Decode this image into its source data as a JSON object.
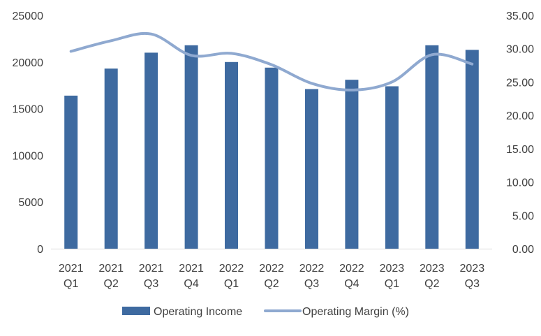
{
  "chart_data": {
    "type": "bar",
    "categories": [
      [
        "2021",
        "Q1"
      ],
      [
        "2021",
        "Q2"
      ],
      [
        "2021",
        "Q3"
      ],
      [
        "2021",
        "Q4"
      ],
      [
        "2022",
        "Q1"
      ],
      [
        "2022",
        "Q2"
      ],
      [
        "2022",
        "Q3"
      ],
      [
        "2022",
        "Q4"
      ],
      [
        "2023",
        "Q1"
      ],
      [
        "2023",
        "Q2"
      ],
      [
        "2023",
        "Q3"
      ]
    ],
    "series": [
      {
        "name": "Operating Income",
        "type": "bar",
        "axis": "left",
        "color": "#3E6AA0",
        "values": [
          16400,
          19300,
          21000,
          21800,
          20000,
          19400,
          17100,
          18100,
          17400,
          21800,
          21300
        ]
      },
      {
        "name": "Operating Margin (%)",
        "type": "line",
        "axis": "right",
        "color": "#8FA9D0",
        "smooth": true,
        "values": [
          29.6,
          31.2,
          32.2,
          29.0,
          29.3,
          27.6,
          24.8,
          23.8,
          25.0,
          29.1,
          27.7
        ]
      }
    ],
    "y_left": {
      "min": 0,
      "max": 25000,
      "ticks": [
        "0",
        "5000",
        "10000",
        "15000",
        "20000",
        "25000"
      ]
    },
    "y_right": {
      "min": 0,
      "max": 35,
      "ticks": [
        "0.00",
        "5.00",
        "10.00",
        "15.00",
        "20.00",
        "25.00",
        "30.00",
        "35.00"
      ]
    },
    "grid": false,
    "legend": {
      "position": "bottom"
    }
  }
}
